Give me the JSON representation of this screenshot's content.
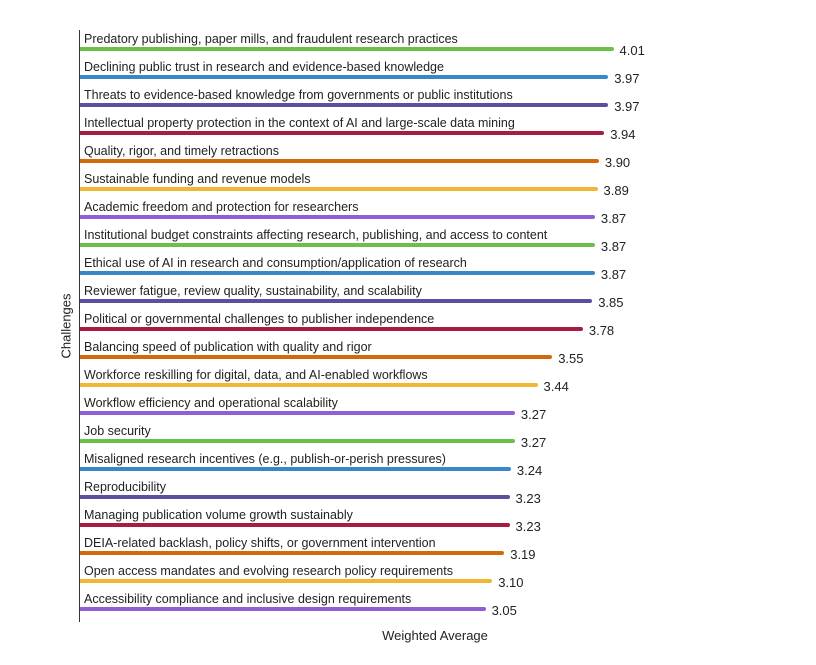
{
  "chart_data": {
    "type": "bar",
    "orientation": "horizontal",
    "title": "",
    "xlabel": "Weighted Average",
    "ylabel": "Challenges",
    "grid": false,
    "legend": null,
    "xlim": [
      0,
      4.2
    ],
    "categories": [
      "Predatory publishing, paper mills, and fraudulent research practices",
      "Declining public trust in research and evidence-based knowledge",
      "Threats to evidence-based knowledge from governments or public institutions",
      "Intellectual property protection in the context of AI and large-scale data mining",
      "Quality, rigor, and timely retractions",
      "Sustainable funding and revenue models",
      "Academic freedom and protection for researchers",
      "Institutional budget constraints affecting research, publishing, and access to content",
      "Ethical use of AI in research and consumption/application of research",
      "Reviewer fatigue, review quality, sustainability, and scalability",
      "Political or governmental challenges to publisher independence",
      "Balancing speed of publication with quality and rigor",
      "Workforce reskilling for digital, data, and AI-enabled workflows",
      "Workflow efficiency and operational scalability",
      "Job security",
      "Misaligned research incentives (e.g., publish-or-perish pressures)",
      "Reproducibility",
      "Managing publication volume growth sustainably",
      "DEIA-related backlash, policy shifts, or government intervention",
      "Open access mandates and evolving research policy requirements",
      "Accessibility compliance and inclusive design requirements"
    ],
    "values": [
      4.01,
      3.97,
      3.97,
      3.94,
      3.9,
      3.89,
      3.87,
      3.87,
      3.87,
      3.85,
      3.78,
      3.55,
      3.44,
      3.27,
      3.27,
      3.24,
      3.23,
      3.23,
      3.19,
      3.1,
      3.05
    ],
    "value_labels": [
      "4.01",
      "3.97",
      "3.97",
      "3.94",
      "3.90",
      "3.89",
      "3.87",
      "3.87",
      "3.87",
      "3.85",
      "3.78",
      "3.55",
      "3.44",
      "3.27",
      "3.27",
      "3.24",
      "3.23",
      "3.23",
      "3.19",
      "3.10",
      "3.05"
    ],
    "colors": [
      "#6cc04a",
      "#3a87c8",
      "#5c4fa0",
      "#a81c43",
      "#d4690a",
      "#f2b635",
      "#8e5fd6",
      "#6cc04a",
      "#3a87c8",
      "#5c4fa0",
      "#a81c43",
      "#d4690a",
      "#f2b635",
      "#8e5fd6",
      "#6cc04a",
      "#3a87c8",
      "#5c4fa0",
      "#a81c43",
      "#d4690a",
      "#f2b635",
      "#8e5fd6"
    ]
  },
  "axes": {
    "y_title": "Challenges",
    "x_title": "Weighted Average"
  }
}
